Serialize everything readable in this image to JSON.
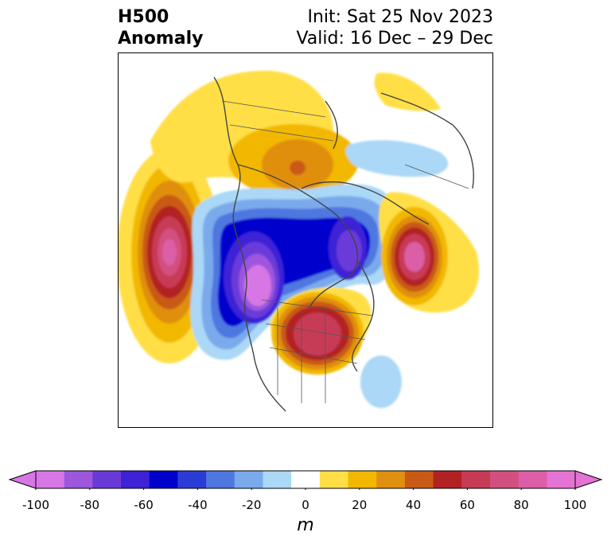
{
  "title": {
    "left_line1": "H500",
    "left_line2": "Anomaly",
    "right_line1": "Init: Sat 25 Nov 2023",
    "right_line2": "Valid: 16 Dec – 29 Dec"
  },
  "colorbar": {
    "unit": "m",
    "min": -100,
    "max": 100,
    "ticks": [
      "-100",
      "-80",
      "-60",
      "-40",
      "-20",
      "0",
      "20",
      "40",
      "60",
      "80",
      "100"
    ],
    "bin_colors": [
      "#d777e6",
      "#9d57dd",
      "#6a3ad9",
      "#3d22d6",
      "#0000cd",
      "#2b3cd6",
      "#4f77e0",
      "#7aaaec",
      "#aad8f6",
      "#ffffff",
      "#ffdf45",
      "#f2b800",
      "#e08f10",
      "#c95a16",
      "#b32222",
      "#c83b57",
      "#d2507f",
      "#dc5ea6",
      "#e573d4"
    ],
    "under_color": "#d777e6",
    "over_color": "#e573d4"
  },
  "map": {
    "projection": "polar stereographic, North America / North Pacific",
    "features": [
      "coastlines",
      "country borders",
      "state/province borders"
    ]
  }
}
